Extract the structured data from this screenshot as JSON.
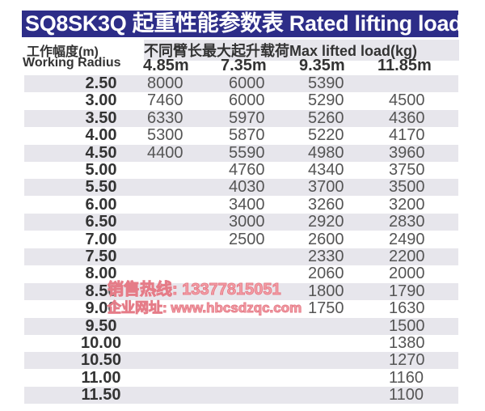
{
  "title": "SQ8SK3Q 起重性能参数表 Rated lifting load",
  "header": {
    "radius_cn": "工作幅度(m)",
    "radius_en": "Working Radius",
    "load_label": "不同臂长最大起升载荷Max lifted load(kg)",
    "booms": [
      "4.85m",
      "7.35m",
      "9.35m",
      "11.85m"
    ]
  },
  "rows": [
    {
      "r": "2.50",
      "v": [
        "8000",
        "6000",
        "5390",
        ""
      ]
    },
    {
      "r": "3.00",
      "v": [
        "7460",
        "6000",
        "5290",
        "4500"
      ]
    },
    {
      "r": "3.50",
      "v": [
        "6330",
        "5970",
        "5260",
        "4360"
      ]
    },
    {
      "r": "4.00",
      "v": [
        "5300",
        "5870",
        "5220",
        "4170"
      ]
    },
    {
      "r": "4.50",
      "v": [
        "4400",
        "5590",
        "4980",
        "3960"
      ]
    },
    {
      "r": "5.00",
      "v": [
        "",
        "4760",
        "4340",
        "3750"
      ]
    },
    {
      "r": "5.50",
      "v": [
        "",
        "4030",
        "3700",
        "3500"
      ]
    },
    {
      "r": "6.00",
      "v": [
        "",
        "3400",
        "3260",
        "3200"
      ]
    },
    {
      "r": "6.50",
      "v": [
        "",
        "3000",
        "2920",
        "2830"
      ]
    },
    {
      "r": "7.00",
      "v": [
        "",
        "2500",
        "2600",
        "2490"
      ]
    },
    {
      "r": "7.50",
      "v": [
        "",
        "",
        "2330",
        "2200"
      ]
    },
    {
      "r": "8.00",
      "v": [
        "",
        "",
        "2060",
        "2000"
      ]
    },
    {
      "r": "8.50",
      "v": [
        "",
        "",
        "1800",
        "1790"
      ]
    },
    {
      "r": "9.00",
      "v": [
        "",
        "",
        "1750",
        "1630"
      ]
    },
    {
      "r": "9.50",
      "v": [
        "",
        "",
        "",
        "1500"
      ]
    },
    {
      "r": "10.00",
      "v": [
        "",
        "",
        "",
        "1380"
      ]
    },
    {
      "r": "10.50",
      "v": [
        "",
        "",
        "",
        "1270"
      ]
    },
    {
      "r": "11.00",
      "v": [
        "",
        "",
        "",
        "1160"
      ]
    },
    {
      "r": "11.50",
      "v": [
        "",
        "",
        "",
        "1100"
      ]
    }
  ],
  "watermark": {
    "line1": "销售热线: 13377815051",
    "line2": "企业网址: www.hbcsdzqc.com"
  },
  "colors": {
    "title_bg": "#2d2d88",
    "row_shade": "#e7e6ec",
    "watermark": "#f4a0a8"
  }
}
